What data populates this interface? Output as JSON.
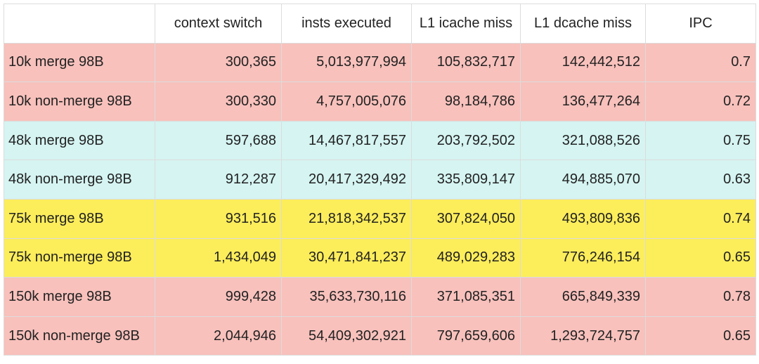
{
  "table": {
    "header": [
      "",
      "context switch",
      "insts executed",
      "L1 icache miss",
      "L1 dcache miss",
      "IPC"
    ],
    "rows": [
      {
        "color": "#f8c1bc",
        "cells": [
          "10k merge 98B",
          "300,365",
          "5,013,977,994",
          "105,832,717",
          "142,442,512",
          "0.7"
        ]
      },
      {
        "color": "#f8c1bc",
        "cells": [
          "10k non-merge 98B",
          "300,330",
          "4,757,005,076",
          "98,184,786",
          "136,477,264",
          "0.72"
        ]
      },
      {
        "color": "#d5f4f2",
        "cells": [
          "48k merge 98B",
          "597,688",
          "14,467,817,557",
          "203,792,502",
          "321,088,526",
          "0.75"
        ]
      },
      {
        "color": "#d5f4f2",
        "cells": [
          "48k non-merge 98B",
          "912,287",
          "20,417,329,492",
          "335,809,147",
          "494,885,070",
          "0.63"
        ]
      },
      {
        "color": "#fced5b",
        "cells": [
          "75k merge 98B",
          "931,516",
          "21,818,342,537",
          "307,824,050",
          "493,809,836",
          "0.74"
        ]
      },
      {
        "color": "#fced5b",
        "cells": [
          "75k non-merge 98B",
          "1,434,049",
          "30,471,841,237",
          "489,029,283",
          "776,246,154",
          "0.65"
        ]
      },
      {
        "color": "#f8c1bc",
        "cells": [
          "150k merge 98B",
          "999,428",
          "35,633,730,116",
          "371,085,351",
          "665,849,339",
          "0.78"
        ]
      },
      {
        "color": "#f8c1bc",
        "cells": [
          "150k non-merge 98B",
          "2,044,946",
          "54,409,302,921",
          "797,659,606",
          "1,293,724,757",
          "0.65"
        ]
      }
    ]
  }
}
